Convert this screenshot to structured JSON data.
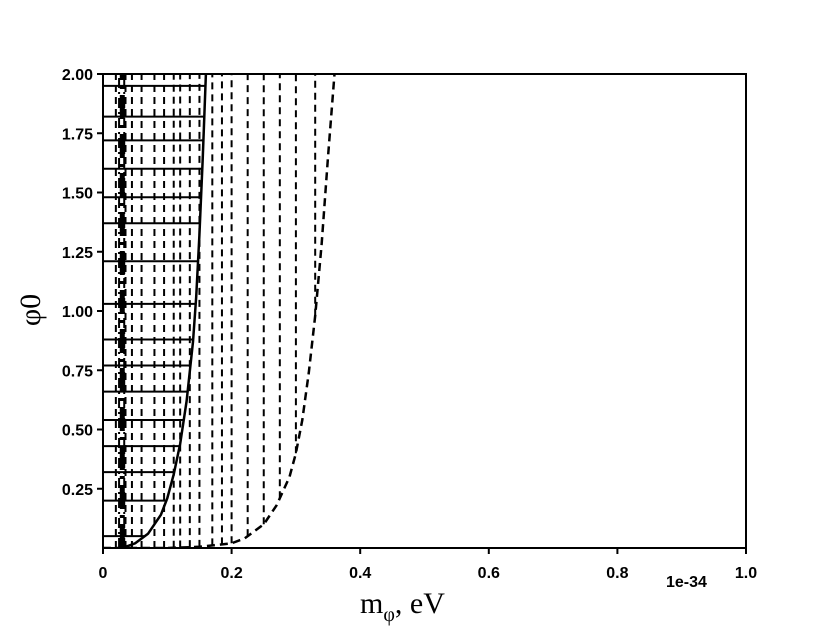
{
  "chart_data": {
    "type": "line",
    "xlabel_main": "m",
    "xlabel_sub": "φ",
    "xlabel_rest": ", eV",
    "ylabel": "φ0",
    "x_offset_label": "1e-34",
    "xlim": [
      0,
      1.0
    ],
    "ylim": [
      0,
      2.0
    ],
    "xticks": [
      {
        "value": 0,
        "label": "0"
      },
      {
        "value": 0.2,
        "label": "0.2"
      },
      {
        "value": 0.4,
        "label": "0.4"
      },
      {
        "value": 0.6,
        "label": "0.6"
      },
      {
        "value": 0.8,
        "label": "0.8"
      },
      {
        "value": 1.0,
        "label": "1.0"
      }
    ],
    "yticks": [
      {
        "value": 0.25,
        "label": "0.25"
      },
      {
        "value": 0.5,
        "label": "0.50"
      },
      {
        "value": 0.75,
        "label": "0.75"
      },
      {
        "value": 1.0,
        "label": "1.00"
      },
      {
        "value": 1.25,
        "label": "1.25"
      },
      {
        "value": 1.5,
        "label": "1.50"
      },
      {
        "value": 1.75,
        "label": "1.75"
      },
      {
        "value": 2.0,
        "label": "2.00"
      }
    ],
    "grid": false,
    "curves": [
      {
        "name": "",
        "style": "solid",
        "x": [
          0.03,
          0.05,
          0.07,
          0.09,
          0.1,
          0.11,
          0.12,
          0.13,
          0.14,
          0.145,
          0.15,
          0.155,
          0.16
        ],
        "y": [
          0.0,
          0.02,
          0.06,
          0.14,
          0.21,
          0.31,
          0.44,
          0.62,
          0.87,
          1.06,
          1.32,
          1.64,
          2.0
        ]
      },
      {
        "name": "",
        "style": "dashed",
        "x": [
          0.0,
          0.1,
          0.15,
          0.2,
          0.22,
          0.25,
          0.27,
          0.29,
          0.3,
          0.31,
          0.32,
          0.33,
          0.34,
          0.35,
          0.36
        ],
        "y": [
          0.0,
          0.0,
          0.005,
          0.02,
          0.04,
          0.1,
          0.18,
          0.3,
          0.4,
          0.54,
          0.74,
          0.98,
          1.28,
          1.65,
          2.0
        ]
      }
    ],
    "hatch_region": {
      "horizontal_lines_y": [
        0.0,
        0.05,
        0.2,
        0.32,
        0.43,
        0.54,
        0.66,
        0.77,
        0.88,
        1.03,
        1.21,
        1.37,
        1.48,
        1.6,
        1.72,
        1.82,
        1.95
      ],
      "vertical_dashed_x": [
        0.02,
        0.035,
        0.045,
        0.06,
        0.08,
        0.095,
        0.11,
        0.12,
        0.135,
        0.15,
        0.17,
        0.185,
        0.2,
        0.225,
        0.25,
        0.275,
        0.3,
        0.33
      ],
      "dashdot_x": [
        0.025,
        0.033
      ],
      "thick_x": 0.03
    }
  }
}
